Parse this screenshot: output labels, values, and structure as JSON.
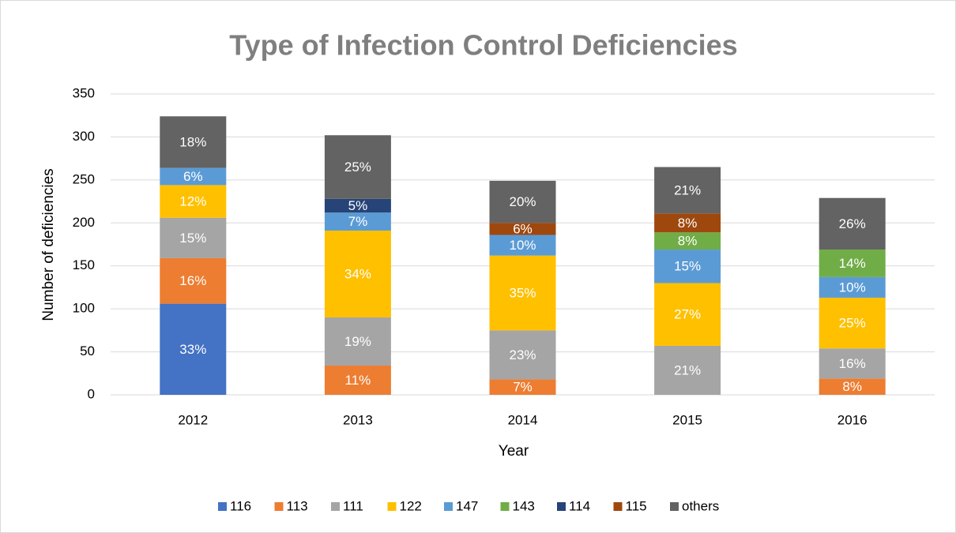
{
  "chart_data": {
    "type": "stacked_bar",
    "title": "Type of Infection Control Deficiencies",
    "x_label": "Year",
    "y_label": "Number of  deficiencies",
    "categories": [
      "2012",
      "2013",
      "2014",
      "2015",
      "2016"
    ],
    "series": [
      {
        "name": "116",
        "color": "#4472c4",
        "values": [
          106,
          null,
          null,
          null,
          null
        ],
        "value_labels": [
          "33%",
          null,
          null,
          null,
          null
        ]
      },
      {
        "name": "113",
        "color": "#ed7d31",
        "values": [
          53,
          34,
          18,
          null,
          19
        ],
        "value_labels": [
          "16%",
          "11%",
          "7%",
          null,
          "8%"
        ]
      },
      {
        "name": "111",
        "color": "#a5a5a5",
        "values": [
          47,
          56,
          57,
          57,
          35
        ],
        "value_labels": [
          "15%",
          "19%",
          "23%",
          "21%",
          "16%"
        ]
      },
      {
        "name": "122",
        "color": "#ffc000",
        "values": [
          38,
          101,
          87,
          73,
          59
        ],
        "value_labels": [
          "12%",
          "34%",
          "35%",
          "27%",
          "25%"
        ]
      },
      {
        "name": "147",
        "color": "#5b9bd5",
        "values": [
          20,
          21,
          24,
          39,
          24
        ],
        "value_labels": [
          "6%",
          "7%",
          "10%",
          "15%",
          "10%"
        ]
      },
      {
        "name": "143",
        "color": "#70ad47",
        "values": [
          null,
          null,
          null,
          20,
          32
        ],
        "value_labels": [
          null,
          null,
          null,
          "8%",
          "14%"
        ]
      },
      {
        "name": "114",
        "color": "#264478",
        "values": [
          null,
          16,
          null,
          null,
          null
        ],
        "value_labels": [
          null,
          "5%",
          null,
          null,
          null
        ]
      },
      {
        "name": "115",
        "color": "#9e480e",
        "values": [
          null,
          null,
          14,
          22,
          null
        ],
        "value_labels": [
          null,
          null,
          "6%",
          "8%",
          null
        ]
      },
      {
        "name": "others",
        "color": "#636363",
        "values": [
          60,
          74,
          49,
          54,
          60
        ],
        "value_labels": [
          "18%",
          "25%",
          "20%",
          "21%",
          "26%"
        ]
      }
    ],
    "ylim": [
      0,
      350
    ],
    "yticks": [
      0,
      50,
      100,
      150,
      200,
      250,
      300,
      350
    ],
    "grid": true,
    "legend": "bottom"
  }
}
